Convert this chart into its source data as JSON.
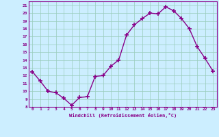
{
  "x": [
    0,
    1,
    2,
    3,
    4,
    5,
    6,
    7,
    8,
    9,
    10,
    11,
    12,
    13,
    14,
    15,
    16,
    17,
    18,
    19,
    20,
    21,
    22,
    23
  ],
  "y": [
    12.5,
    11.3,
    10.0,
    9.8,
    9.1,
    8.2,
    9.2,
    9.3,
    11.9,
    12.0,
    13.2,
    14.0,
    17.2,
    18.5,
    19.3,
    20.0,
    19.9,
    20.8,
    20.3,
    19.3,
    18.0,
    15.7,
    14.2,
    12.6
  ],
  "color": "#880088",
  "bg_color": "#cceeff",
  "grid_color": "#99ccbb",
  "xlabel": "Windchill (Refroidissement éolien,°C)",
  "ylim": [
    8,
    21.5
  ],
  "yticks": [
    8,
    9,
    10,
    11,
    12,
    13,
    14,
    15,
    16,
    17,
    18,
    19,
    20,
    21
  ],
  "xticks": [
    0,
    1,
    2,
    3,
    4,
    5,
    6,
    7,
    8,
    9,
    10,
    11,
    12,
    13,
    14,
    15,
    16,
    17,
    18,
    19,
    20,
    21,
    22,
    23
  ],
  "marker": "+",
  "markersize": 5,
  "linewidth": 1.0
}
